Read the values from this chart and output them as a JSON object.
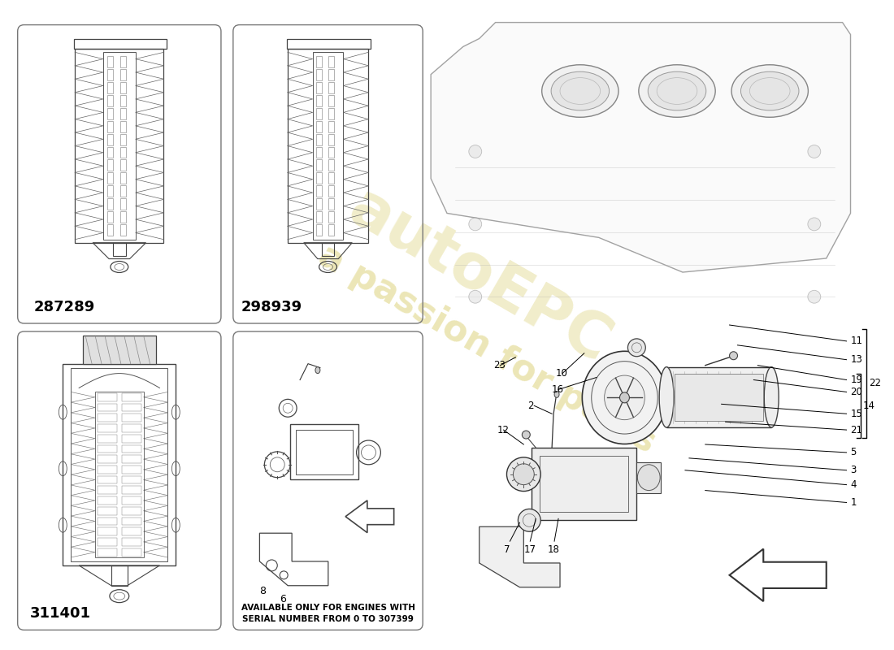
{
  "background_color": "#ffffff",
  "watermark_text": "a passion for parts",
  "watermark_color": "#c8b830",
  "watermark_opacity": 0.35,
  "logo_text": "autoEPC",
  "logo_color": "#c8b830",
  "logo_opacity": 0.25,
  "part_codes": [
    "287289",
    "298939",
    "311401"
  ],
  "box_color": "#555555",
  "line_color": "#333333",
  "avail_line1": "AVAILABLE ONLY FOR ENGINES WITH",
  "avail_line2": "SERIAL NUMBER FROM 0 TO 307399"
}
